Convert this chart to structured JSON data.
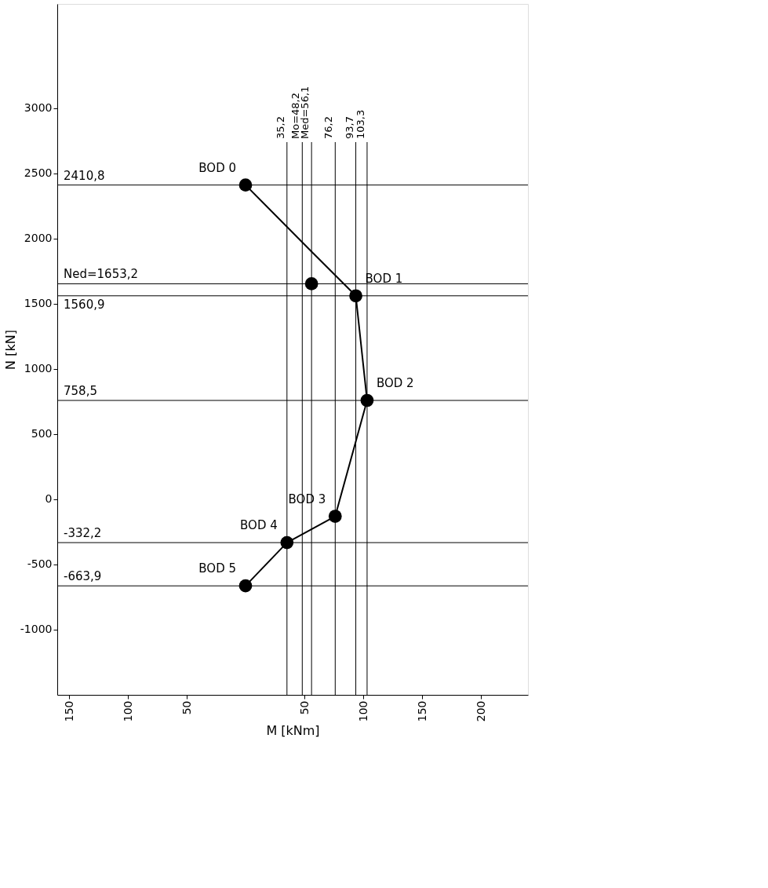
{
  "chart_data": {
    "type": "line",
    "xlabel": "M [kNm]",
    "ylabel": "N [kN]",
    "xlim": [
      -160,
      240
    ],
    "ylim": [
      -1500,
      3800
    ],
    "xticks": [
      {
        "value": -150,
        "label": "150"
      },
      {
        "value": -100,
        "label": "100"
      },
      {
        "value": -50,
        "label": "50"
      },
      50,
      100,
      150,
      200
    ],
    "yticks": [
      -1000,
      -500,
      0,
      500,
      1000,
      1500,
      2000,
      2500,
      3000
    ],
    "grid": false,
    "series": [
      {
        "type": "line",
        "color": "#000000",
        "marker": "none",
        "x": [
          0,
          56.1,
          93.7,
          103.3,
          76.2,
          35.2,
          0
        ],
        "values": [
          2410.8,
          1900,
          1560.9,
          758.5,
          -130,
          -332.2,
          -663.9
        ]
      },
      {
        "type": "scatter",
        "color": "#000000",
        "marker": "circle",
        "x": [
          0,
          93.7,
          103.3,
          76.2,
          35.2,
          0
        ],
        "values": [
          2410.8,
          1560.9,
          758.5,
          -130,
          -332.2,
          -663.9
        ]
      },
      {
        "type": "scatter",
        "color": "#000000",
        "marker": "circle",
        "x": [
          56.1
        ],
        "values": [
          1653.2
        ]
      }
    ],
    "ref_lines": [
      {
        "axis": "x",
        "value": 35.2,
        "label": "35,2"
      },
      {
        "axis": "x",
        "value": 48.2,
        "label": "Mo=48,2"
      },
      {
        "axis": "x",
        "value": 56.1,
        "label": "Med=56,1"
      },
      {
        "axis": "x",
        "value": 76.2,
        "label": "76,2"
      },
      {
        "axis": "x",
        "value": 93.7,
        "label": "93,7"
      },
      {
        "axis": "x",
        "value": 103.3,
        "label": "103,3"
      },
      {
        "axis": "y",
        "value": 2410.8,
        "label": "2410,8"
      },
      {
        "axis": "y",
        "value": 1653.2,
        "label": "Ned=1653,2"
      },
      {
        "axis": "y",
        "value": 1560.9,
        "label": "1560,9"
      },
      {
        "axis": "y",
        "value": 758.5,
        "label": "758,5"
      },
      {
        "axis": "y",
        "value": -332.2,
        "label": "-332,2"
      },
      {
        "axis": "y",
        "value": -663.9,
        "label": "-663,9"
      }
    ],
    "annotations": [
      {
        "text": "BOD 0",
        "x": 0,
        "y": 2410.8
      },
      {
        "text": "BOD 1",
        "x": 93.7,
        "y": 1560.9
      },
      {
        "text": "BOD 2",
        "x": 103.3,
        "y": 758.5
      },
      {
        "text": "BOD 3",
        "x": 76.2,
        "y": -130
      },
      {
        "text": "BOD 4",
        "x": 35.2,
        "y": -332.2
      },
      {
        "text": "BOD 5",
        "x": 0,
        "y": -663.9
      }
    ]
  }
}
